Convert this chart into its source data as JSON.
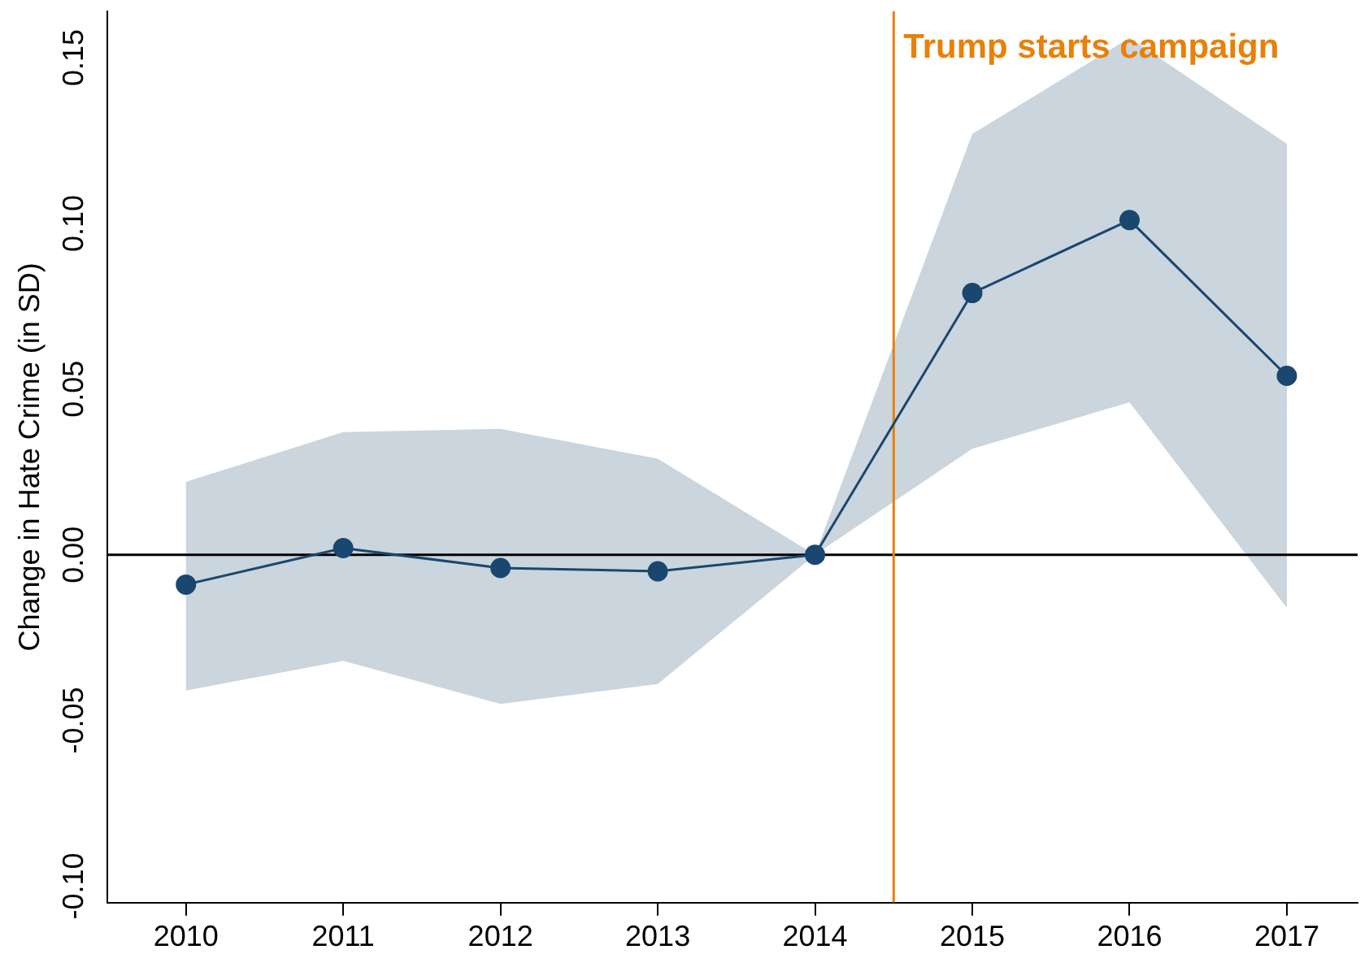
{
  "chart_data": {
    "type": "line",
    "ylabel": "Change in Hate Crime (in SD)",
    "x": [
      2010,
      2011,
      2012,
      2013,
      2014,
      2015,
      2016,
      2017
    ],
    "series": [
      {
        "color": "#1a476f",
        "values": [
          -0.009,
          0.002,
          -0.004,
          -0.005,
          0,
          0.079,
          0.101,
          0.054
        ],
        "lower": [
          -0.041,
          -0.032,
          -0.045,
          -0.039,
          0,
          0.032,
          0.046,
          -0.016
        ],
        "upper": [
          0.022,
          0.037,
          0.038,
          0.029,
          0,
          0.127,
          0.156,
          0.124
        ]
      }
    ],
    "xlim": [
      2009.5,
      2017.45
    ],
    "xticks": [
      2010,
      2011,
      2012,
      2013,
      2014,
      2015,
      2016,
      2017
    ],
    "ylim": [
      -0.105,
      0.164
    ],
    "yticks": [
      {
        "value": -0.1,
        "label": "-0.10"
      },
      {
        "value": -0.05,
        "label": "-0.05"
      },
      {
        "value": 0,
        "label": "0.00"
      },
      {
        "value": 0.05,
        "label": "0.05"
      },
      {
        "value": 0.1,
        "label": "0.10"
      },
      {
        "value": 0.15,
        "label": "0.15"
      }
    ],
    "ref_lines": [
      {
        "axis": "y",
        "value": 0,
        "color": "#000000"
      },
      {
        "axis": "x",
        "value": 2014.5,
        "label": "Trump starts campaign",
        "color": "#e8800a"
      }
    ],
    "grid": false,
    "legend": false,
    "marker": "circle",
    "line_style": "solid"
  }
}
